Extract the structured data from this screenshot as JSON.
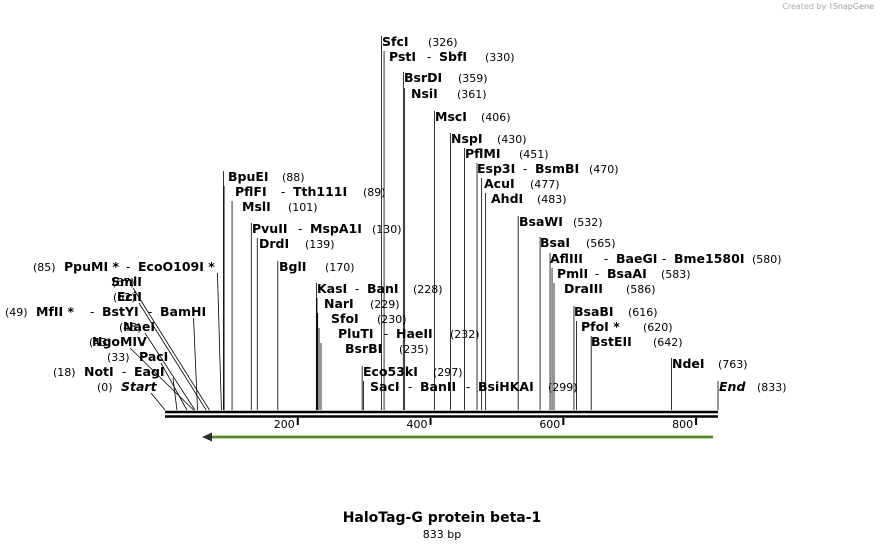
{
  "credit": {
    "prefix": "Created by",
    "brand": "SnapGene"
  },
  "map": {
    "title": "HaloTag-G protein beta-1",
    "length_label": "833 bp",
    "ticks": [
      "200",
      "400",
      "600",
      "800"
    ],
    "sites": [
      {
        "names": [
          "SfcI"
        ],
        "pos": "(326)"
      },
      {
        "names": [
          "PstI",
          "SbfI"
        ],
        "pos": "(330)"
      },
      {
        "names": [
          "BsrDI"
        ],
        "pos": "(359)"
      },
      {
        "names": [
          "NsiI"
        ],
        "pos": "(361)"
      },
      {
        "names": [
          "MscI"
        ],
        "pos": "(406)"
      },
      {
        "names": [
          "NspI"
        ],
        "pos": "(430)"
      },
      {
        "names": [
          "PflMI"
        ],
        "pos": "(451)"
      },
      {
        "names": [
          "Esp3I",
          "BsmBI"
        ],
        "pos": "(470)"
      },
      {
        "names": [
          "AcuI"
        ],
        "pos": "(477)"
      },
      {
        "names": [
          "AhdI"
        ],
        "pos": "(483)"
      },
      {
        "names": [
          "BsaWI"
        ],
        "pos": "(532)"
      },
      {
        "names": [
          "BsaI"
        ],
        "pos": "(565)"
      },
      {
        "names": [
          "AflIII",
          "BaeGI",
          "Bme1580I"
        ],
        "pos": "(580)"
      },
      {
        "names": [
          "PmlI",
          "BsaAI"
        ],
        "pos": "(583)"
      },
      {
        "names": [
          "DraIII"
        ],
        "pos": "(586)"
      },
      {
        "names": [
          "BsaBI"
        ],
        "pos": "(616)"
      },
      {
        "names": [
          "PfoI *"
        ],
        "pos": "(620)"
      },
      {
        "names": [
          "BstEII"
        ],
        "pos": "(642)"
      },
      {
        "names": [
          "NdeI"
        ],
        "pos": "(763)"
      },
      {
        "names": [
          "End"
        ],
        "pos": "(833)"
      },
      {
        "names": [
          "BpuEI"
        ],
        "pos": "(88)"
      },
      {
        "names": [
          "PflFI",
          "Tth111I"
        ],
        "pos": "(89)"
      },
      {
        "names": [
          "MslI"
        ],
        "pos": "(101)"
      },
      {
        "names": [
          "PvuII",
          "MspA1I"
        ],
        "pos": "(130)"
      },
      {
        "names": [
          "DrdI"
        ],
        "pos": "(139)"
      },
      {
        "names": [
          "BglI"
        ],
        "pos": "(170)"
      },
      {
        "names": [
          "KasI",
          "BanI"
        ],
        "pos": "(228)"
      },
      {
        "names": [
          "NarI"
        ],
        "pos": "(229)"
      },
      {
        "names": [
          "SfoI"
        ],
        "pos": "(230)"
      },
      {
        "names": [
          "PluTI",
          "HaeII"
        ],
        "pos": "(232)"
      },
      {
        "names": [
          "BsrBI"
        ],
        "pos": "(235)"
      },
      {
        "names": [
          "Eco53kI"
        ],
        "pos": "(297)"
      },
      {
        "names": [
          "SacI",
          "BanII",
          "BsiHKAI"
        ],
        "pos": "(299)"
      },
      {
        "names": [
          "PpuMI *",
          "EcoO109I *"
        ],
        "pos": "(85)"
      },
      {
        "names": [
          "SmlI"
        ],
        "pos": "(67)"
      },
      {
        "names": [
          "EciI"
        ],
        "pos": "(62)"
      },
      {
        "names": [
          "MfII *",
          "BstYI",
          "BamHI"
        ],
        "pos": "(49)"
      },
      {
        "names": [
          "NaeI"
        ],
        "pos": "(45)"
      },
      {
        "names": [
          "NgoMIV"
        ],
        "pos": "(43)"
      },
      {
        "names": [
          "PacI"
        ],
        "pos": "(33)"
      },
      {
        "names": [
          "NotI",
          "EagI"
        ],
        "pos": "(18)"
      },
      {
        "names": [
          "Start"
        ],
        "pos": "(0)"
      }
    ]
  }
}
